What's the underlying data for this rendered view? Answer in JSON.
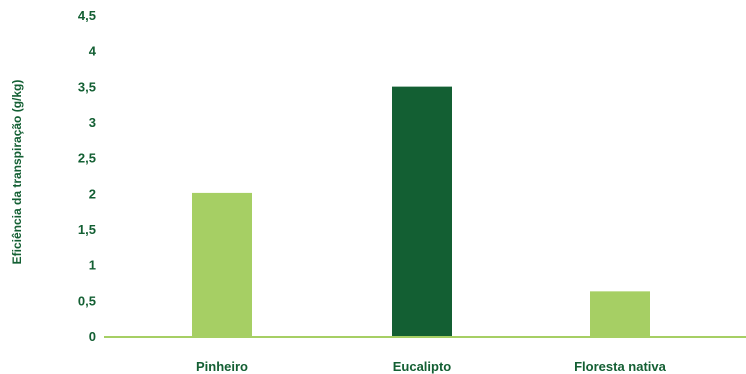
{
  "chart_data": {
    "type": "bar",
    "categories": [
      "Pinheiro",
      "Eucalipto",
      "Floresta nativa"
    ],
    "values": [
      2.02,
      3.51,
      0.64
    ],
    "ylabel": "Eficiência da transpiração (g/kg)",
    "xlabel": "",
    "ylim": [
      0,
      4.5
    ],
    "y_ticks": [
      "0",
      "0,5",
      "1",
      "1,5",
      "2",
      "2,5",
      "3",
      "3,5",
      "4",
      "4,5"
    ],
    "grid": false,
    "legend": "none",
    "colors": {
      "bar_light": "#a6cf64",
      "bar_dark": "#135f33",
      "axis": "#a6cf64",
      "text": "#135f33"
    },
    "bar_colors": [
      "#a6cf64",
      "#135f33",
      "#a6cf64"
    ]
  }
}
